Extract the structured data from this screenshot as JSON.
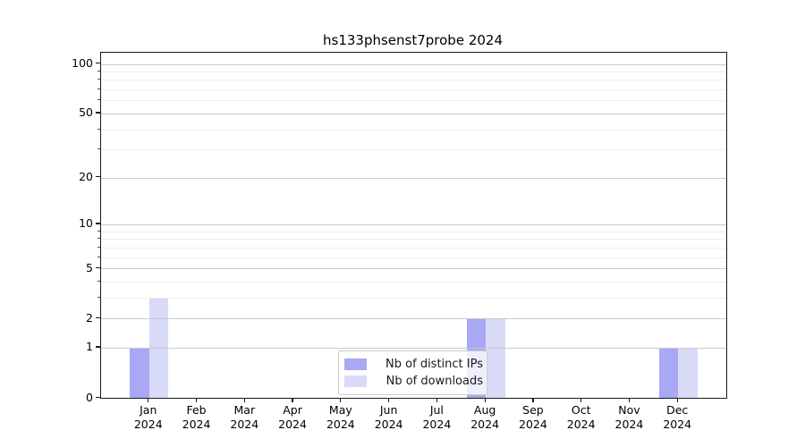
{
  "chart_data": {
    "type": "bar",
    "title": "hs133phsenst7probe 2024",
    "categories": [
      "Jan",
      "Feb",
      "Mar",
      "Apr",
      "May",
      "Jun",
      "Jul",
      "Aug",
      "Sep",
      "Oct",
      "Nov",
      "Dec"
    ],
    "year_label": "2024",
    "series": [
      {
        "name": "Nb of distinct IPs",
        "color": "#a8a8f4",
        "values": [
          1,
          0,
          0,
          0,
          0,
          0,
          0,
          2,
          0,
          0,
          0,
          1
        ]
      },
      {
        "name": "Nb of downloads",
        "color": "#d9d9f8",
        "values": [
          3,
          0,
          0,
          0,
          0,
          0,
          0,
          2,
          0,
          0,
          0,
          1
        ]
      }
    ],
    "xlabel": "",
    "ylabel": "",
    "yscale": "log1p",
    "ylim": [
      0,
      117
    ],
    "yticks": [
      0,
      1,
      2,
      5,
      10,
      20,
      50,
      100
    ],
    "minor_gridline_values": [
      3,
      4,
      6,
      7,
      8,
      9,
      30,
      40,
      60,
      70,
      80,
      90
    ],
    "grid": "horizontal",
    "legend_position": "lower center"
  },
  "colors": {
    "major_grid": "#c9c9c9",
    "minor_grid": "#efefef",
    "spine": "#1a1a1a",
    "legend_border": "#cccccc"
  }
}
